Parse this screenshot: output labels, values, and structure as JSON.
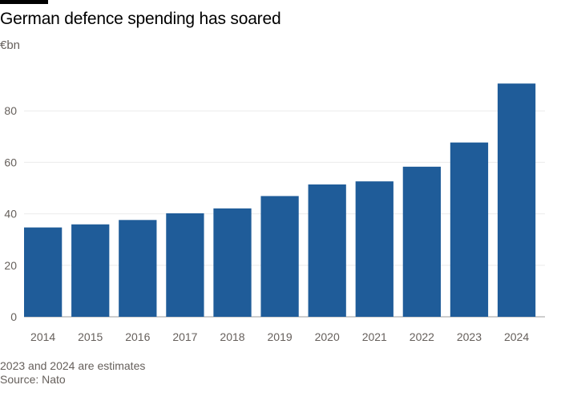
{
  "chart_data": {
    "type": "bar",
    "title": "German defence spending has soared",
    "unit_label": "€bn",
    "categories": [
      "2014",
      "2015",
      "2016",
      "2017",
      "2018",
      "2019",
      "2020",
      "2021",
      "2022",
      "2023",
      "2024"
    ],
    "values": [
      34.7,
      35.9,
      37.6,
      40.2,
      42.1,
      46.9,
      51.4,
      52.6,
      58.3,
      67.7,
      90.6
    ],
    "ylim": [
      0,
      95
    ],
    "yticks": [
      0,
      20,
      40,
      60,
      80
    ],
    "bar_color": "#1f5c99",
    "grid": true
  },
  "note": "2023 and 2024 are estimates",
  "source": "Source: Nato"
}
